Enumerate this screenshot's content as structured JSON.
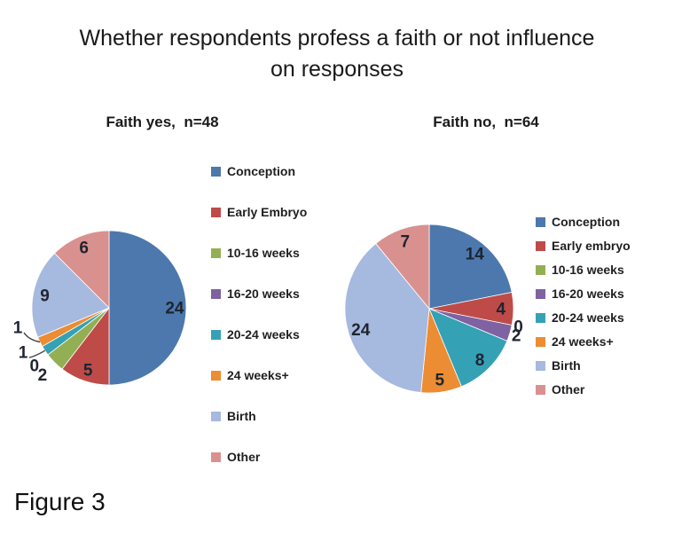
{
  "page": {
    "title_line1": "Whether respondents profess a faith or not influence",
    "title_line2": "on responses",
    "figure_label": "Figure 3",
    "background": "#ffffff",
    "text_color": "#1a1a1a"
  },
  "chart_data": [
    {
      "type": "pie",
      "title": "Faith yes,  n=48",
      "n": 48,
      "categories": [
        "Conception",
        "Early Embryo",
        "10-16 weeks",
        "16-20 weeks",
        "20-24 weeks",
        "24 weeks+",
        "Birth",
        "Other"
      ],
      "values": [
        24,
        5,
        2,
        0,
        1,
        1,
        9,
        6
      ],
      "colors": [
        "#4C78AD",
        "#BE4B48",
        "#93AF53",
        "#7E62A1",
        "#35A1B5",
        "#EC8C33",
        "#A6B9DE",
        "#D9918F"
      ],
      "legend_position": "right",
      "data_labels": true,
      "label_color": "#1f2430",
      "start_angle_deg": 0,
      "direction": "clockwise"
    },
    {
      "type": "pie",
      "title": "Faith no,  n=64",
      "n": 64,
      "categories": [
        "Conception",
        "Early embryo",
        "10-16 weeks",
        "16-20 weeks",
        "20-24 weeks",
        "24 weeks+",
        "Birth",
        "Other"
      ],
      "values": [
        14,
        4,
        0,
        2,
        8,
        5,
        24,
        7
      ],
      "colors": [
        "#4C78AD",
        "#BE4B48",
        "#93AF53",
        "#7E62A1",
        "#35A1B5",
        "#EC8C33",
        "#A6B9DE",
        "#D9918F"
      ],
      "legend_position": "right",
      "data_labels": true,
      "label_color": "#1f2430",
      "start_angle_deg": 0,
      "direction": "clockwise"
    }
  ]
}
